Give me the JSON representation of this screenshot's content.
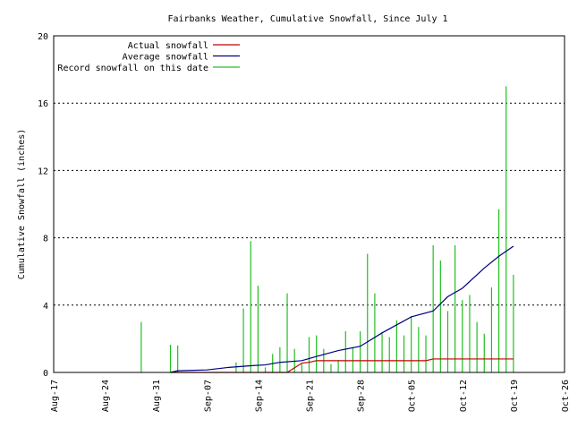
{
  "chart_data": {
    "type": "line",
    "title": "Fairbanks Weather, Cumulative Snowfall, Since July 1",
    "xlabel": "",
    "ylabel": "Cumulative Snowfall (inches)",
    "ylim": [
      0,
      20
    ],
    "yticks": [
      0,
      4,
      8,
      12,
      16,
      20
    ],
    "xlim": [
      "08-17",
      "10-26"
    ],
    "xticks": [
      "Aug-17",
      "Aug-24",
      "Aug-31",
      "Sep-07",
      "Sep-14",
      "Sep-21",
      "Sep-28",
      "Oct-05",
      "Oct-12",
      "Oct-19",
      "Oct-26"
    ],
    "grid": "horizontal dotted at 4, 8, 12, 16",
    "legend_position": "top-left",
    "series": [
      {
        "name": "Actual snowfall",
        "color": "#c00000",
        "style": "line",
        "points": [
          [
            "09-02",
            0
          ],
          [
            "09-18",
            0
          ],
          [
            "09-20",
            0.55
          ],
          [
            "09-21",
            0.6
          ],
          [
            "09-22",
            0.7
          ],
          [
            "10-07",
            0.7
          ],
          [
            "10-08",
            0.8
          ],
          [
            "10-19",
            0.8
          ]
        ]
      },
      {
        "name": "Average snowfall",
        "color": "#000080",
        "style": "line",
        "points": [
          [
            "09-02",
            0
          ],
          [
            "09-03",
            0.1
          ],
          [
            "09-07",
            0.15
          ],
          [
            "09-10",
            0.3
          ],
          [
            "09-13",
            0.4
          ],
          [
            "09-15",
            0.45
          ],
          [
            "09-17",
            0.6
          ],
          [
            "09-20",
            0.7
          ],
          [
            "09-22",
            0.95
          ],
          [
            "09-25",
            1.3
          ],
          [
            "09-28",
            1.55
          ],
          [
            "10-01",
            2.35
          ],
          [
            "10-05",
            3.3
          ],
          [
            "10-08",
            3.65
          ],
          [
            "10-10",
            4.5
          ],
          [
            "10-12",
            5.0
          ],
          [
            "10-15",
            6.2
          ],
          [
            "10-17",
            6.9
          ],
          [
            "10-19",
            7.5
          ]
        ]
      },
      {
        "name": "Record snowfall on this date",
        "color": "#20c020",
        "style": "bar",
        "points": [
          [
            "08-29",
            3.0
          ],
          [
            "09-02",
            1.65
          ],
          [
            "09-03",
            1.6
          ],
          [
            "09-11",
            0.6
          ],
          [
            "09-12",
            3.8
          ],
          [
            "09-13",
            7.8
          ],
          [
            "09-14",
            5.15
          ],
          [
            "09-15",
            0.3
          ],
          [
            "09-16",
            1.1
          ],
          [
            "09-17",
            1.5
          ],
          [
            "09-18",
            4.7
          ],
          [
            "09-19",
            1.4
          ],
          [
            "09-20",
            0.5
          ],
          [
            "09-21",
            2.1
          ],
          [
            "09-22",
            2.2
          ],
          [
            "09-23",
            1.4
          ],
          [
            "09-24",
            0.5
          ],
          [
            "09-25",
            0.75
          ],
          [
            "09-26",
            2.45
          ],
          [
            "09-27",
            1.5
          ],
          [
            "09-28",
            2.45
          ],
          [
            "09-29",
            7.05
          ],
          [
            "09-30",
            4.7
          ],
          [
            "10-01",
            2.4
          ],
          [
            "10-02",
            2.1
          ],
          [
            "10-03",
            3.1
          ],
          [
            "10-04",
            2.2
          ],
          [
            "10-05",
            3.35
          ],
          [
            "10-06",
            2.7
          ],
          [
            "10-07",
            2.2
          ],
          [
            "10-08",
            7.55
          ],
          [
            "10-09",
            6.65
          ],
          [
            "10-10",
            3.65
          ],
          [
            "10-11",
            7.55
          ],
          [
            "10-12",
            4.3
          ],
          [
            "10-13",
            4.6
          ],
          [
            "10-14",
            3.0
          ],
          [
            "10-15",
            2.3
          ],
          [
            "10-16",
            5.05
          ],
          [
            "10-17",
            9.7
          ],
          [
            "10-18",
            17.0
          ],
          [
            "10-19",
            5.8
          ]
        ]
      }
    ]
  }
}
